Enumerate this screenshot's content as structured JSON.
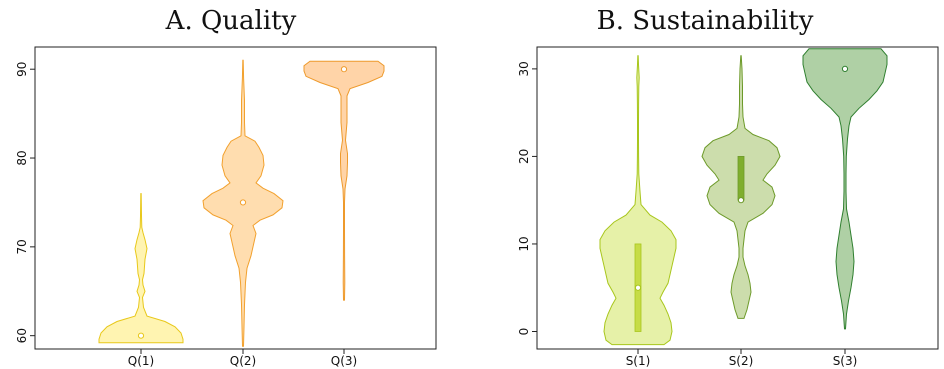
{
  "chart_data": [
    {
      "type": "violin",
      "title": "A. Quality",
      "xlabel": "",
      "ylabel": "",
      "categories": [
        "Q(1)",
        "Q(2)",
        "Q(3)"
      ],
      "ylim": [
        58.5,
        92.5
      ],
      "yticks": [
        "60",
        "70",
        "80",
        "90"
      ],
      "medians": [
        60,
        75,
        90
      ],
      "quartiles": [
        [
          60,
          60
        ],
        [
          75,
          75
        ],
        [
          90,
          90
        ]
      ],
      "ranges": [
        [
          59,
          76
        ],
        [
          59,
          91
        ],
        [
          64,
          91
        ]
      ],
      "colors": {
        "fill": [
          "#fff3a8",
          "#ffd9a6",
          "#ffcf9e"
        ],
        "stroke": [
          "#e8c81a",
          "#f2a12e",
          "#ee9a2c"
        ],
        "box": [
          "#f3d84a",
          "#f3b25a",
          "#f1a44a"
        ]
      },
      "grid": false
    },
    {
      "type": "violin",
      "title": "B. Sustainability",
      "xlabel": "",
      "ylabel": "",
      "categories": [
        "S(1)",
        "S(2)",
        "S(3)"
      ],
      "ylim": [
        -2,
        32.5
      ],
      "yticks": [
        "0",
        "10",
        "20",
        "30"
      ],
      "medians": [
        5,
        15,
        30
      ],
      "quartiles": [
        [
          0,
          10
        ],
        [
          15,
          20
        ],
        [
          30,
          30
        ]
      ],
      "ranges": [
        [
          -1.5,
          31.5
        ],
        [
          1.5,
          31.5
        ],
        [
          0,
          32.5
        ]
      ],
      "colors": {
        "fill": [
          "#e3ef9e",
          "#c6d9a3",
          "#a6cb9b"
        ],
        "stroke": [
          "#a8c61c",
          "#6d9a2a",
          "#2f7f2f"
        ],
        "box": [
          "#c6dc46",
          "#7fae2e",
          "#3e8a3e"
        ]
      },
      "grid": false
    }
  ]
}
